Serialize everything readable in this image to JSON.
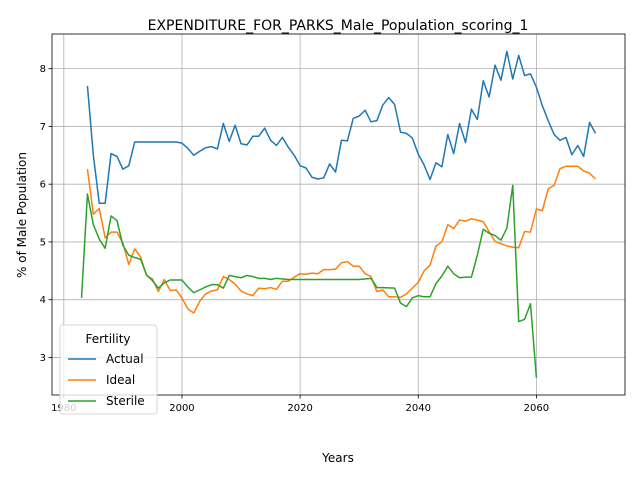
{
  "chart_data": {
    "type": "line",
    "title": "EXPENDITURE_FOR_PARKS_Male_Population_scoring_1",
    "xlabel": "Years",
    "ylabel": "% of Male Population",
    "xlim": [
      1978,
      2075
    ],
    "ylim": [
      2.35,
      8.6
    ],
    "xticks": [
      1980,
      2000,
      2020,
      2040,
      2060
    ],
    "yticks": [
      3,
      4,
      5,
      6,
      7,
      8
    ],
    "grid": true,
    "legend": {
      "title": "Fertility",
      "placement": "lower-left"
    },
    "series": [
      {
        "name": "Actual",
        "color": "#1f77b4",
        "points": [
          [
            1984,
            7.7
          ],
          [
            1985,
            6.5
          ],
          [
            1986,
            5.67
          ],
          [
            1987,
            5.67
          ],
          [
            1988,
            6.53
          ],
          [
            1989,
            6.48
          ],
          [
            1990,
            6.26
          ],
          [
            1991,
            6.32
          ],
          [
            1992,
            6.73
          ],
          [
            1993,
            6.73
          ],
          [
            1995,
            6.73
          ],
          [
            1997,
            6.73
          ],
          [
            1999,
            6.73
          ],
          [
            2000,
            6.71
          ],
          [
            2001,
            6.62
          ],
          [
            2002,
            6.5
          ],
          [
            2003,
            6.57
          ],
          [
            2004,
            6.63
          ],
          [
            2005,
            6.65
          ],
          [
            2006,
            6.61
          ],
          [
            2007,
            7.05
          ],
          [
            2008,
            6.74
          ],
          [
            2009,
            7.02
          ],
          [
            2010,
            6.7
          ],
          [
            2011,
            6.68
          ],
          [
            2012,
            6.83
          ],
          [
            2013,
            6.83
          ],
          [
            2014,
            6.97
          ],
          [
            2015,
            6.76
          ],
          [
            2016,
            6.67
          ],
          [
            2017,
            6.81
          ],
          [
            2018,
            6.64
          ],
          [
            2019,
            6.5
          ],
          [
            2020,
            6.32
          ],
          [
            2021,
            6.28
          ],
          [
            2022,
            6.12
          ],
          [
            2023,
            6.09
          ],
          [
            2024,
            6.11
          ],
          [
            2025,
            6.35
          ],
          [
            2026,
            6.21
          ],
          [
            2027,
            6.76
          ],
          [
            2028,
            6.75
          ],
          [
            2029,
            7.14
          ],
          [
            2030,
            7.18
          ],
          [
            2031,
            7.28
          ],
          [
            2032,
            7.08
          ],
          [
            2033,
            7.1
          ],
          [
            2034,
            7.37
          ],
          [
            2035,
            7.5
          ],
          [
            2036,
            7.38
          ],
          [
            2037,
            6.9
          ],
          [
            2038,
            6.88
          ],
          [
            2039,
            6.8
          ],
          [
            2040,
            6.52
          ],
          [
            2041,
            6.33
          ],
          [
            2042,
            6.08
          ],
          [
            2043,
            6.37
          ],
          [
            2044,
            6.3
          ],
          [
            2045,
            6.86
          ],
          [
            2046,
            6.53
          ],
          [
            2047,
            7.05
          ],
          [
            2048,
            6.72
          ],
          [
            2049,
            7.3
          ],
          [
            2050,
            7.12
          ],
          [
            2051,
            7.79
          ],
          [
            2052,
            7.51
          ],
          [
            2053,
            8.06
          ],
          [
            2054,
            7.8
          ],
          [
            2055,
            8.3
          ],
          [
            2056,
            7.82
          ],
          [
            2057,
            8.23
          ],
          [
            2058,
            7.88
          ],
          [
            2059,
            7.91
          ],
          [
            2060,
            7.68
          ],
          [
            2061,
            7.36
          ],
          [
            2062,
            7.1
          ],
          [
            2063,
            6.86
          ],
          [
            2064,
            6.76
          ],
          [
            2065,
            6.81
          ],
          [
            2066,
            6.51
          ],
          [
            2067,
            6.67
          ],
          [
            2068,
            6.48
          ],
          [
            2069,
            7.07
          ],
          [
            2070,
            6.88
          ]
        ]
      },
      {
        "name": "Ideal",
        "color": "#ff7f0e",
        "points": [
          [
            1984,
            6.26
          ],
          [
            1985,
            5.48
          ],
          [
            1986,
            5.58
          ],
          [
            1987,
            5.07
          ],
          [
            1988,
            5.17
          ],
          [
            1989,
            5.17
          ],
          [
            1990,
            4.98
          ],
          [
            1991,
            4.61
          ],
          [
            1992,
            4.88
          ],
          [
            1993,
            4.74
          ],
          [
            1994,
            4.42
          ],
          [
            1995,
            4.36
          ],
          [
            1996,
            4.14
          ],
          [
            1997,
            4.35
          ],
          [
            1998,
            4.16
          ],
          [
            1999,
            4.17
          ],
          [
            2000,
            4.03
          ],
          [
            2001,
            3.84
          ],
          [
            2002,
            3.77
          ],
          [
            2003,
            3.97
          ],
          [
            2004,
            4.1
          ],
          [
            2005,
            4.15
          ],
          [
            2006,
            4.17
          ],
          [
            2007,
            4.4
          ],
          [
            2008,
            4.35
          ],
          [
            2009,
            4.27
          ],
          [
            2010,
            4.15
          ],
          [
            2011,
            4.1
          ],
          [
            2012,
            4.07
          ],
          [
            2013,
            4.2
          ],
          [
            2014,
            4.19
          ],
          [
            2015,
            4.21
          ],
          [
            2016,
            4.18
          ],
          [
            2017,
            4.32
          ],
          [
            2018,
            4.32
          ],
          [
            2019,
            4.39
          ],
          [
            2020,
            4.45
          ],
          [
            2021,
            4.44
          ],
          [
            2022,
            4.46
          ],
          [
            2023,
            4.45
          ],
          [
            2024,
            4.52
          ],
          [
            2025,
            4.52
          ],
          [
            2026,
            4.53
          ],
          [
            2027,
            4.64
          ],
          [
            2028,
            4.66
          ],
          [
            2029,
            4.58
          ],
          [
            2030,
            4.58
          ],
          [
            2031,
            4.45
          ],
          [
            2032,
            4.4
          ],
          [
            2033,
            4.14
          ],
          [
            2034,
            4.17
          ],
          [
            2035,
            4.05
          ],
          [
            2036,
            4.05
          ],
          [
            2037,
            4.04
          ],
          [
            2038,
            4.1
          ],
          [
            2039,
            4.2
          ],
          [
            2040,
            4.3
          ],
          [
            2041,
            4.5
          ],
          [
            2042,
            4.6
          ],
          [
            2043,
            4.93
          ],
          [
            2044,
            5.0
          ],
          [
            2045,
            5.3
          ],
          [
            2046,
            5.23
          ],
          [
            2047,
            5.38
          ],
          [
            2048,
            5.36
          ],
          [
            2049,
            5.4
          ],
          [
            2050,
            5.38
          ],
          [
            2051,
            5.35
          ],
          [
            2052,
            5.18
          ],
          [
            2053,
            5.01
          ],
          [
            2054,
            4.97
          ],
          [
            2055,
            4.93
          ],
          [
            2056,
            4.91
          ],
          [
            2057,
            4.9
          ],
          [
            2058,
            5.18
          ],
          [
            2059,
            5.17
          ],
          [
            2060,
            5.57
          ],
          [
            2061,
            5.54
          ],
          [
            2062,
            5.92
          ],
          [
            2063,
            5.98
          ],
          [
            2064,
            6.27
          ],
          [
            2065,
            6.31
          ],
          [
            2066,
            6.31
          ],
          [
            2067,
            6.31
          ],
          [
            2068,
            6.23
          ],
          [
            2069,
            6.19
          ],
          [
            2070,
            6.09
          ]
        ]
      },
      {
        "name": "Sterile",
        "color": "#2ca02c",
        "points": [
          [
            1983,
            4.03
          ],
          [
            1984,
            5.83
          ],
          [
            1985,
            5.3
          ],
          [
            1986,
            5.05
          ],
          [
            1987,
            4.89
          ],
          [
            1988,
            5.45
          ],
          [
            1989,
            5.37
          ],
          [
            1990,
            4.94
          ],
          [
            1991,
            4.77
          ],
          [
            1992,
            4.73
          ],
          [
            1993,
            4.7
          ],
          [
            1994,
            4.43
          ],
          [
            1995,
            4.33
          ],
          [
            1996,
            4.2
          ],
          [
            1997,
            4.29
          ],
          [
            1998,
            4.34
          ],
          [
            2000,
            4.34
          ],
          [
            2001,
            4.22
          ],
          [
            2002,
            4.12
          ],
          [
            2003,
            4.17
          ],
          [
            2004,
            4.22
          ],
          [
            2005,
            4.26
          ],
          [
            2006,
            4.26
          ],
          [
            2007,
            4.2
          ],
          [
            2008,
            4.42
          ],
          [
            2009,
            4.4
          ],
          [
            2010,
            4.38
          ],
          [
            2011,
            4.42
          ],
          [
            2012,
            4.4
          ],
          [
            2013,
            4.37
          ],
          [
            2014,
            4.37
          ],
          [
            2015,
            4.35
          ],
          [
            2016,
            4.37
          ],
          [
            2018,
            4.35
          ],
          [
            2020,
            4.35
          ],
          [
            2025,
            4.35
          ],
          [
            2030,
            4.35
          ],
          [
            2032,
            4.37
          ],
          [
            2033,
            4.21
          ],
          [
            2034,
            4.21
          ],
          [
            2036,
            4.2
          ],
          [
            2037,
            3.94
          ],
          [
            2038,
            3.88
          ],
          [
            2039,
            4.03
          ],
          [
            2040,
            4.07
          ],
          [
            2041,
            4.05
          ],
          [
            2042,
            4.05
          ],
          [
            2043,
            4.28
          ],
          [
            2044,
            4.41
          ],
          [
            2045,
            4.58
          ],
          [
            2046,
            4.45
          ],
          [
            2047,
            4.38
          ],
          [
            2048,
            4.39
          ],
          [
            2049,
            4.39
          ],
          [
            2050,
            4.77
          ],
          [
            2051,
            5.22
          ],
          [
            2052,
            5.15
          ],
          [
            2053,
            5.11
          ],
          [
            2054,
            5.03
          ],
          [
            2055,
            5.24
          ],
          [
            2056,
            5.98
          ],
          [
            2057,
            3.62
          ],
          [
            2058,
            3.66
          ],
          [
            2059,
            3.93
          ],
          [
            2060,
            2.65
          ]
        ]
      }
    ]
  }
}
